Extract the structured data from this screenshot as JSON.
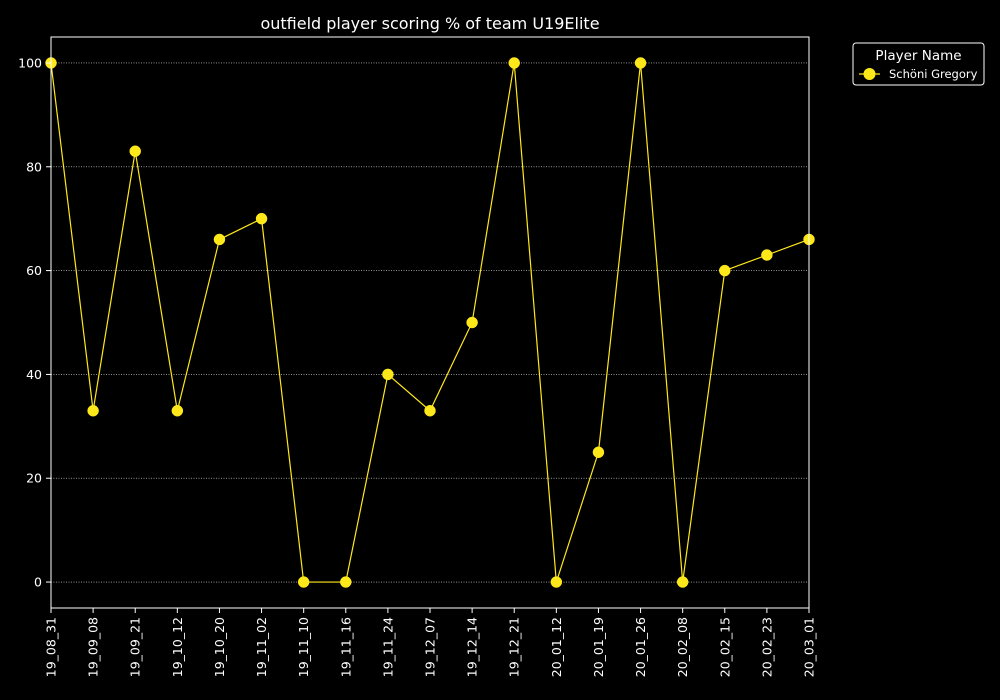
{
  "chart_data": {
    "type": "line",
    "title": "outfield player scoring % of team U19Elite",
    "xlabel": "",
    "ylabel": "",
    "categories": [
      "19_08_31",
      "19_09_08",
      "19_09_21",
      "19_10_12",
      "19_10_20",
      "19_11_02",
      "19_11_10",
      "19_11_16",
      "19_11_24",
      "19_12_07",
      "19_12_14",
      "19_12_21",
      "20_01_12",
      "20_01_19",
      "20_01_26",
      "20_02_08",
      "20_02_15",
      "20_02_23",
      "20_03_01"
    ],
    "series": [
      {
        "name": "Schöni Gregory",
        "values": [
          100,
          33,
          83,
          33,
          66,
          70,
          0,
          0,
          40,
          33,
          50,
          100,
          0,
          25,
          100,
          0,
          60,
          63,
          66
        ],
        "color": "#ffe81a"
      }
    ],
    "ylim": [
      -5,
      105
    ],
    "yticks": [
      0,
      20,
      40,
      60,
      80,
      100
    ],
    "grid": "y-dotted",
    "legend": {
      "title": "Player Name",
      "placement": "outside-top-right"
    },
    "colors": {
      "background": "#000000",
      "axes": "#ffffff",
      "text": "#ffffff",
      "line": "#ffe81a"
    }
  }
}
